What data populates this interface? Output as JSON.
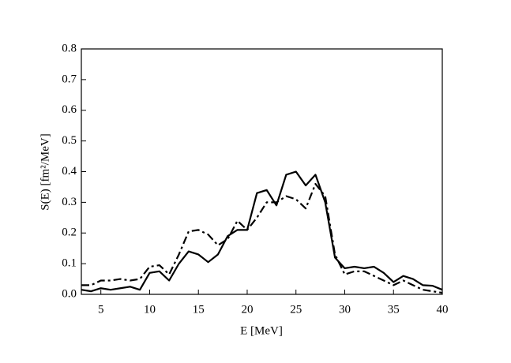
{
  "chart_data": {
    "type": "line",
    "xlabel": "E [MeV]",
    "ylabel": "S(E) [fm²/MeV]",
    "x": [
      3,
      4,
      5,
      6,
      7,
      8,
      9,
      10,
      11,
      12,
      13,
      14,
      15,
      16,
      17,
      18,
      19,
      20,
      21,
      22,
      23,
      24,
      25,
      26,
      27,
      28,
      29,
      30,
      31,
      32,
      33,
      34,
      35,
      36,
      37,
      38,
      39,
      40
    ],
    "series": [
      {
        "color": "#000000",
        "style": "solid",
        "values": [
          0.015,
          0.01,
          0.02,
          0.015,
          0.02,
          0.025,
          0.015,
          0.07,
          0.075,
          0.045,
          0.1,
          0.14,
          0.13,
          0.105,
          0.13,
          0.19,
          0.21,
          0.21,
          0.33,
          0.34,
          0.29,
          0.39,
          0.4,
          0.355,
          0.39,
          0.3,
          0.12,
          0.085,
          0.09,
          0.085,
          0.09,
          0.07,
          0.04,
          0.06,
          0.05,
          0.03,
          0.028,
          0.015
        ]
      },
      {
        "color": "#000000",
        "style": "dashdot",
        "values": [
          0.03,
          0.03,
          0.045,
          0.045,
          0.05,
          0.045,
          0.05,
          0.09,
          0.095,
          0.065,
          0.13,
          0.205,
          0.21,
          0.195,
          0.16,
          0.18,
          0.24,
          0.21,
          0.25,
          0.3,
          0.3,
          0.32,
          0.31,
          0.28,
          0.36,
          0.32,
          0.13,
          0.065,
          0.075,
          0.075,
          0.06,
          0.045,
          0.03,
          0.045,
          0.03,
          0.015,
          0.01,
          0.005
        ]
      }
    ],
    "xlim": [
      3,
      40
    ],
    "xticks": [
      5,
      10,
      15,
      20,
      25,
      30,
      35,
      40
    ],
    "ylim": [
      0,
      0.8
    ],
    "yticks": [
      {
        "value": 0,
        "label": "0.0"
      },
      0.1,
      0.2,
      0.3,
      0.4,
      0.5,
      0.6,
      0.7,
      0.8
    ]
  }
}
